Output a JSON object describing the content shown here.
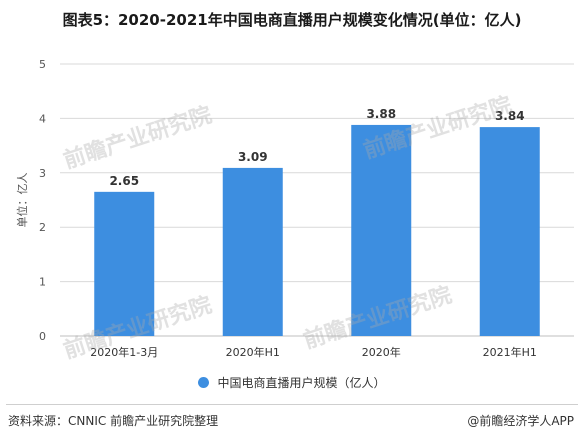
{
  "title": "图表5：2020-2021年中国电商直播用户规模变化情况(单位：亿人)",
  "watermark": "前瞻产业研究院",
  "legend_label": "中国电商直播用户规模（亿人）",
  "footer": {
    "source": "资料来源：CNNIC 前瞻产业研究院整理",
    "brand": "@前瞻经济学人APP"
  },
  "colors": {
    "bar": "#3d8ee0",
    "grid": "#d9d9d9",
    "axis": "#bfbfbf"
  },
  "chart_data": {
    "type": "bar",
    "categories": [
      "2020年1-3月",
      "2020年H1",
      "2020年",
      "2021年H1"
    ],
    "series": [
      {
        "name": "中国电商直播用户规模（亿人）",
        "values": [
          2.65,
          3.09,
          3.88,
          3.84
        ]
      }
    ],
    "data_labels": [
      "2.65",
      "3.09",
      "3.88",
      "3.84"
    ],
    "ylabel": "单位：亿人",
    "ylim": [
      0,
      5
    ],
    "yticks": [
      0,
      1,
      2,
      3,
      4,
      5
    ],
    "grid": true,
    "legend": "bottom"
  }
}
